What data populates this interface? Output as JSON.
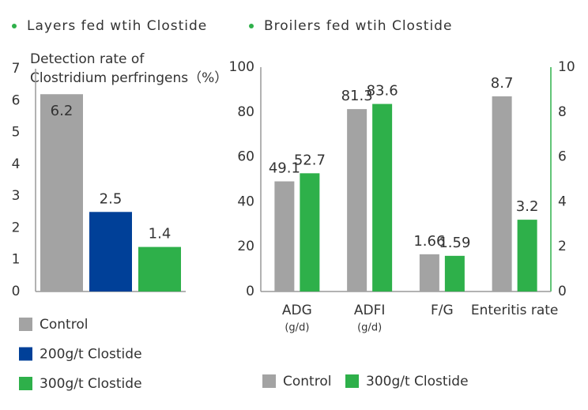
{
  "chart_data": [
    {
      "type": "bar",
      "title": "Layers fed wtih Clostide",
      "ylabel": [
        "Detection rate of",
        "Clostridium perfringens（%）"
      ],
      "categories": [
        null
      ],
      "series": [
        {
          "name": "Control",
          "color": "#a3a3a3",
          "label_color": "#ffffff",
          "label_position": "inside",
          "values": [
            6.2
          ]
        },
        {
          "name": "200g/t Clostide",
          "color": "#004098",
          "label_color": "#004098",
          "values": [
            2.5
          ]
        },
        {
          "name": "300g/t Clostide",
          "color": "#2eb04a",
          "label_color": "#2eb04a",
          "values": [
            1.4
          ]
        }
      ],
      "ylim": [
        0,
        7
      ],
      "yticks": [
        0,
        1,
        2,
        3,
        4,
        5,
        6,
        7
      ],
      "legend": "bottom"
    },
    {
      "type": "bar",
      "title": "Broilers fed wtih Clostide",
      "categories": [
        "ADG",
        "ADFI",
        "F/G",
        "Enteritis rate"
      ],
      "category_units": [
        "(g/d)",
        "(g/d)",
        null,
        null
      ],
      "series": [
        {
          "name": "Control",
          "color": "#a3a3a3",
          "label_color": "#8c8c8c",
          "values": [
            49.1,
            81.3,
            null,
            null
          ]
        },
        {
          "name": "300g/t Clostide",
          "color": "#2eb04a",
          "label_color": "#2eb04a",
          "values": [
            52.7,
            83.6,
            null,
            null
          ]
        },
        {
          "name": "Control",
          "color": "#a3a3a3",
          "label_color": "#8c8c8c",
          "axis": "y2",
          "values": [
            null,
            null,
            1.66,
            8.7
          ]
        },
        {
          "name": "300g/t Clostide",
          "color": "#2eb04a",
          "label_color": "#2eb04a",
          "axis": "y2",
          "values": [
            null,
            null,
            1.59,
            3.2
          ]
        }
      ],
      "ylim": [
        0,
        100
      ],
      "yticks": [
        0,
        20,
        40,
        60,
        80,
        100
      ],
      "y2lim": [
        0,
        10
      ],
      "y2ticks": [
        0,
        2,
        4,
        6,
        8,
        10
      ],
      "y2color": "#2eb04a",
      "legend": "bottom"
    }
  ]
}
